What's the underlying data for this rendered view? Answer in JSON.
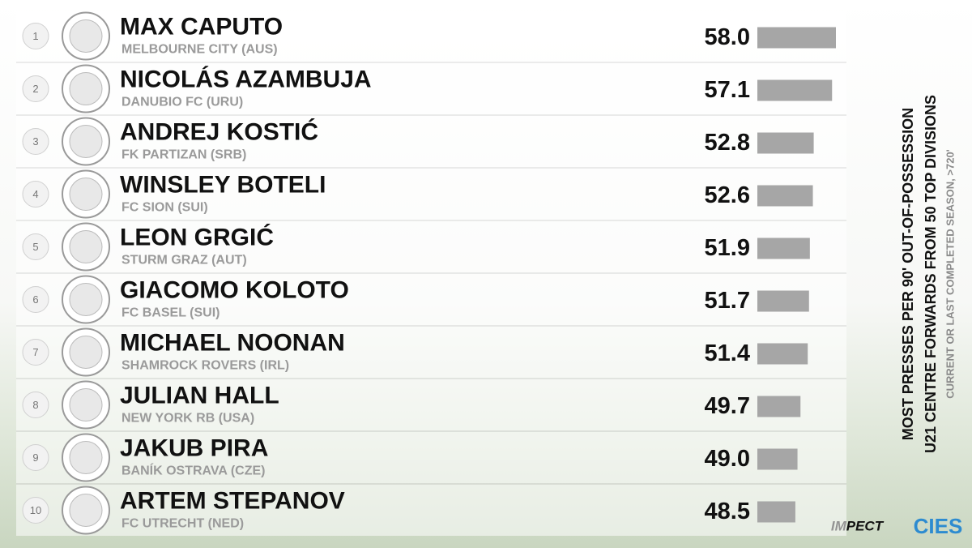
{
  "chart_data": {
    "type": "bar",
    "title": "MOST PRESSES PER 90' OUT-OF-POSSESSION",
    "subtitle": "U21 CENTRE FORWARDS FROM 50 TOP DIVISIONS",
    "note": "CURRENT OR LAST COMPLETED SEASON, >720'",
    "ranks": [
      "1",
      "2",
      "3",
      "4",
      "5",
      "6",
      "7",
      "8",
      "9",
      "10"
    ],
    "categories": [
      "MAX CAPUTO",
      "NICOLÁS AZAMBUJA",
      "ANDREJ KOSTIĆ",
      "WINSLEY BOTELI",
      "LEON GRGIĆ",
      "GIACOMO KOLOTO",
      "MICHAEL NOONAN",
      "JULIAN HALL",
      "JAKUB PIRA",
      "ARTEM STEPANOV"
    ],
    "clubs": [
      "MELBOURNE CITY (AUS)",
      "DANUBIO FC (URU)",
      "FK PARTIZAN (SRB)",
      "FC SION (SUI)",
      "STURM GRAZ (AUT)",
      "FC BASEL (SUI)",
      "SHAMROCK ROVERS (IRL)",
      "NEW YORK RB (USA)",
      "BANÍK OSTRAVA (CZE)",
      "FC UTRECHT (NED)"
    ],
    "values": [
      58.0,
      57.1,
      52.8,
      52.6,
      51.9,
      51.7,
      51.4,
      49.7,
      49.0,
      48.5
    ],
    "value_labels": [
      "58.0",
      "57.1",
      "52.8",
      "52.6",
      "51.9",
      "51.7",
      "51.4",
      "49.7",
      "49.0",
      "48.5"
    ],
    "xlim": [
      39.6,
      58.0
    ],
    "color": "#a6a6a6",
    "brands": [
      "IMPECT",
      "CIES"
    ]
  }
}
